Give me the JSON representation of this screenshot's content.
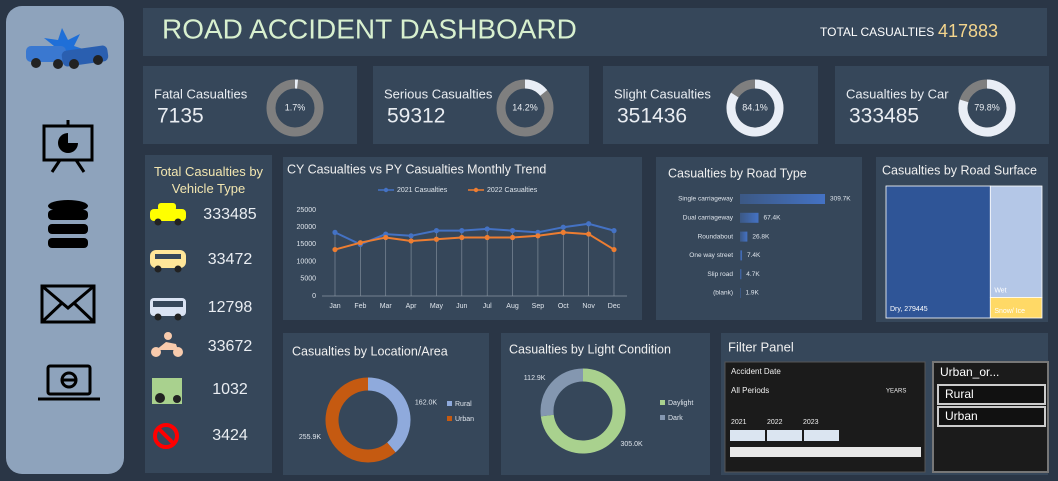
{
  "header": {
    "title": "ROAD ACCIDENT DASHBOARD",
    "total_label": "TOTAL CASUALTIES",
    "total_value": 417883
  },
  "kpi_cards": [
    {
      "label": "Fatal Casualties",
      "value": 7135,
      "percent": 1.7,
      "percent_label": "1.7%"
    },
    {
      "label": "Serious Casualties",
      "value": 59312,
      "percent": 14.2,
      "percent_label": "14.2%"
    },
    {
      "label": "Slight Casualties",
      "value": 351436,
      "percent": 84.1,
      "percent_label": "84.1%"
    },
    {
      "label": "Casualties by Car",
      "value": 333485,
      "percent": 79.8,
      "percent_label": "79.8%"
    }
  ],
  "vehicle_panel": {
    "title": "Total Casualties by Vehicle Type",
    "items": [
      {
        "value": 333485,
        "color": "#ffff00"
      },
      {
        "value": 33472,
        "color": "#ffe699"
      },
      {
        "value": 12798,
        "color": "#dae3f3"
      },
      {
        "value": 33672,
        "color": "#f8cbad"
      },
      {
        "value": 1032,
        "color": "#a9d18e"
      },
      {
        "value": 3424,
        "color": "#ff0000"
      }
    ]
  },
  "chart_data": [
    {
      "type": "line",
      "title": "CY Casualties vs PY Casualties Monthly Trend",
      "categories": [
        "Jan",
        "Feb",
        "Mar",
        "Apr",
        "May",
        "Jun",
        "Jul",
        "Aug",
        "Sep",
        "Oct",
        "Nov",
        "Dec"
      ],
      "series": [
        {
          "name": "2021 Casualties",
          "color": "#4472c4",
          "values": [
            18500,
            15000,
            18000,
            17500,
            19000,
            19000,
            19500,
            19000,
            18500,
            20000,
            21000,
            19000
          ]
        },
        {
          "name": "2022 Casualties",
          "color": "#ed7d31",
          "values": [
            13500,
            15500,
            17000,
            16000,
            16500,
            17000,
            17000,
            17000,
            17500,
            18500,
            18000,
            13500
          ]
        }
      ],
      "ylim": [
        0,
        25000
      ],
      "yticks": [
        0,
        5000,
        10000,
        15000,
        20000,
        25000
      ],
      "legend": "top",
      "grid": false
    },
    {
      "type": "bar",
      "orientation": "horizontal",
      "title": "Casualties by Road Type",
      "categories": [
        "Single carriageway",
        "Dual carriageway",
        "Roundabout",
        "One way street",
        "Slip road",
        "(blank)"
      ],
      "values": [
        309.7,
        67.4,
        26.8,
        7.4,
        4.7,
        1.9
      ],
      "value_labels": [
        "309.7K",
        "67.4K",
        "26.8K",
        "7.4K",
        "4.7K",
        "1.9K"
      ],
      "color": "#4472c4"
    },
    {
      "type": "treemap",
      "title": "Casualties by Road Surface",
      "labels": [
        "Dry, 279445",
        "Wet",
        "Snow/ Ice"
      ],
      "values": [
        279445,
        116887,
        21551
      ],
      "colors": [
        "#2f5597",
        "#b4c7e7",
        "#ffd966"
      ]
    },
    {
      "type": "donut",
      "title": "Casualties by Location/Area",
      "categories": [
        "Rural",
        "Urban"
      ],
      "values": [
        162.0,
        255.9
      ],
      "value_labels": [
        "162.0K",
        "255.9K"
      ],
      "colors": [
        "#8faadc",
        "#c55a11"
      ]
    },
    {
      "type": "donut",
      "title": "Casualties by Light Condition",
      "categories": [
        "Daylight",
        "Dark"
      ],
      "values": [
        305.0,
        112.9
      ],
      "value_labels": [
        "305.0K",
        "112.9K"
      ],
      "colors": [
        "#a9d18e",
        "#8497b0"
      ]
    }
  ],
  "filter_panel": {
    "title": "Filter Panel",
    "timeline": {
      "title": "Accident Date",
      "period": "All Periods",
      "level": "YEARS",
      "years": [
        "2021",
        "2022",
        "2023"
      ]
    },
    "slicer": {
      "title": "Urban_or...",
      "items": [
        "Rural",
        "Urban"
      ]
    }
  }
}
